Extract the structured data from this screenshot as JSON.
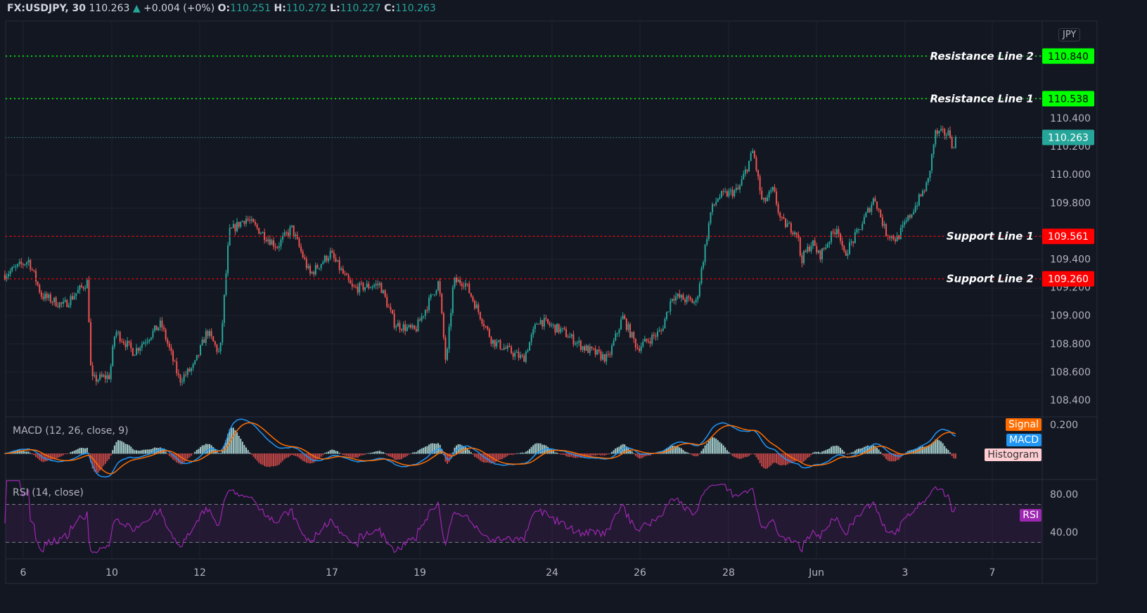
{
  "header": {
    "symbol": "FX:USDJPY, 30",
    "last": "110.263",
    "change": "+0.004 (+0%)",
    "o_label": "O:",
    "o": "110.251",
    "h_label": "H:",
    "h": "110.272",
    "l_label": "L:",
    "l": "110.227",
    "c_label": "C:",
    "c": "110.263"
  },
  "currency_button": "JPY",
  "colors": {
    "up": "#26a69a",
    "down": "#ef5350",
    "resistance": "#00ff00",
    "support": "#ff0000",
    "macd": "#2196f3",
    "signal": "#ff6d00",
    "rsi": "#9c27b0",
    "background": "#131722"
  },
  "chart_data": {
    "type": "candlestick",
    "symbol": "FX:USDJPY",
    "interval": "30",
    "price_axis": {
      "ticks": [
        "110.400",
        "110.200",
        "110.000",
        "109.800",
        "109.400",
        "109.200",
        "109.000",
        "108.800",
        "108.600",
        "108.400"
      ],
      "range": [
        108.3,
        111.1
      ]
    },
    "x_ticks": [
      "6",
      "10",
      "12",
      "17",
      "19",
      "24",
      "26",
      "28",
      "Jun",
      "3",
      "7"
    ],
    "close_path": [
      [
        "2021-05-05T14:00",
        109.29
      ],
      [
        "2021-05-06T03:00",
        109.39
      ],
      [
        "2021-05-06T10:00",
        109.14
      ],
      [
        "2021-05-06T22:00",
        109.07
      ],
      [
        "2021-05-07T11:00",
        109.24
      ],
      [
        "2021-05-07T13:00",
        108.54
      ],
      [
        "2021-05-07T23:00",
        108.57
      ],
      [
        "2021-05-10T02:00",
        108.89
      ],
      [
        "2021-05-10T12:00",
        108.74
      ],
      [
        "2021-05-11T03:00",
        108.94
      ],
      [
        "2021-05-11T13:00",
        108.54
      ],
      [
        "2021-05-11T21:00",
        108.64
      ],
      [
        "2021-05-12T04:00",
        108.89
      ],
      [
        "2021-05-12T11:00",
        108.72
      ],
      [
        "2021-05-12T16:00",
        109.59
      ],
      [
        "2021-05-13T01:00",
        109.69
      ],
      [
        "2021-05-13T18:00",
        109.49
      ],
      [
        "2021-05-14T02:00",
        109.62
      ],
      [
        "2021-05-14T12:00",
        109.29
      ],
      [
        "2021-05-14T23:00",
        109.44
      ],
      [
        "2021-05-17T11:00",
        109.19
      ],
      [
        "2021-05-18T02:00",
        109.22
      ],
      [
        "2021-05-18T10:00",
        108.94
      ],
      [
        "2021-05-18T21:00",
        108.89
      ],
      [
        "2021-05-19T10:00",
        109.24
      ],
      [
        "2021-05-19T14:00",
        108.64
      ],
      [
        "2021-05-19T18:00",
        109.24
      ],
      [
        "2021-05-20T00:00",
        109.24
      ],
      [
        "2021-05-20T15:00",
        108.82
      ],
      [
        "2021-05-21T08:00",
        108.69
      ],
      [
        "2021-05-21T16:00",
        108.97
      ],
      [
        "2021-05-24T05:00",
        108.89
      ],
      [
        "2021-05-24T17:00",
        108.77
      ],
      [
        "2021-05-25T06:00",
        108.69
      ],
      [
        "2021-05-25T14:00",
        108.99
      ],
      [
        "2021-05-25T22:00",
        108.77
      ],
      [
        "2021-05-26T11:00",
        108.89
      ],
      [
        "2021-05-26T17:00",
        109.14
      ],
      [
        "2021-05-27T06:00",
        109.09
      ],
      [
        "2021-05-27T14:00",
        109.74
      ],
      [
        "2021-05-27T18:00",
        109.84
      ],
      [
        "2021-05-28T05:00",
        109.89
      ],
      [
        "2021-05-28T13:00",
        110.17
      ],
      [
        "2021-05-28T18:00",
        109.79
      ],
      [
        "2021-05-31T00:00",
        109.89
      ],
      [
        "2021-05-31T04:00",
        109.67
      ],
      [
        "2021-05-31T13:00",
        109.59
      ],
      [
        "2021-05-31T15:00",
        109.39
      ],
      [
        "2021-05-31T21:00",
        109.52
      ],
      [
        "2021-06-01T01:00",
        109.42
      ],
      [
        "2021-06-01T11:00",
        109.64
      ],
      [
        "2021-06-01T14:00",
        109.42
      ],
      [
        "2021-06-01T22:00",
        109.59
      ],
      [
        "2021-06-02T07:00",
        109.84
      ],
      [
        "2021-06-02T13:00",
        109.59
      ],
      [
        "2021-06-02T19:00",
        109.54
      ],
      [
        "2021-06-03T07:00",
        109.82
      ],
      [
        "2021-06-03T12:00",
        109.94
      ],
      [
        "2021-06-03T16:00",
        110.29
      ],
      [
        "2021-06-04T00:00",
        110.29
      ],
      [
        "2021-06-04T02:00",
        110.17
      ],
      [
        "2021-06-04T04:00",
        110.263
      ]
    ],
    "levels": [
      {
        "name": "Resistance Line 2",
        "price": 110.84,
        "label": "110.840",
        "type": "resistance"
      },
      {
        "name": "Resistance Line 1",
        "price": 110.538,
        "label": "110.538",
        "type": "resistance"
      },
      {
        "name": "Support Line 1",
        "price": 109.561,
        "label": "109.561",
        "type": "support"
      },
      {
        "name": "Support Line 2",
        "price": 109.26,
        "label": "109.260",
        "type": "support"
      }
    ],
    "last_price": {
      "price": 110.263,
      "label": "110.263"
    },
    "macd": {
      "title": "MACD (12, 26, close, 9)",
      "tick": "0.200",
      "legend": [
        "Signal",
        "MACD",
        "Histogram"
      ]
    },
    "rsi": {
      "title": "RSI (14, close)",
      "ticks": [
        "80.00",
        "40.00"
      ],
      "bands": [
        70,
        30
      ],
      "legend": "RSI"
    }
  }
}
